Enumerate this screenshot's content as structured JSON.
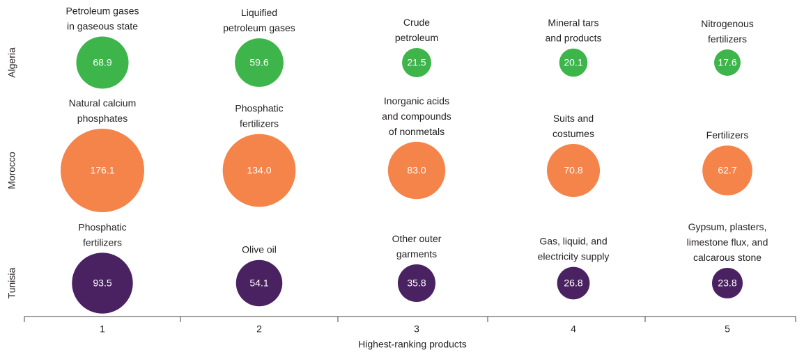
{
  "chart_data": {
    "type": "bubble",
    "xlabel": "Highest-ranking products",
    "categories": [
      "1",
      "2",
      "3",
      "4",
      "5"
    ],
    "series": [
      {
        "name": "Algeria",
        "color": "#3db54a",
        "labels": [
          "Petroleum gases\nin gaseous state",
          "Liquified\npetroleum gases",
          "Crude\npetroleum",
          "Mineral tars\nand products",
          "Nitrogenous\nfertilizers"
        ],
        "values": [
          68.9,
          59.6,
          21.5,
          20.1,
          17.6
        ],
        "value_labels": [
          "68.9",
          "59.6",
          "21.5",
          "20.1",
          "17.6"
        ]
      },
      {
        "name": "Morocco",
        "color": "#f4844a",
        "labels": [
          "Natural calcium\nphosphates",
          "Phosphatic\nfertilizers",
          "Inorganic acids\nand compounds\nof nonmetals",
          "Suits and\ncostumes",
          "Fertilizers"
        ],
        "values": [
          176.1,
          134.0,
          83.0,
          70.8,
          62.7
        ],
        "value_labels": [
          "176.1",
          "134.0",
          "83.0",
          "70.8",
          "62.7"
        ]
      },
      {
        "name": "Tunisia",
        "color": "#4a2262",
        "labels": [
          "Phosphatic\nfertilizers",
          "Olive oil",
          "Other outer\ngarments",
          "Gas, liquid, and\nelectricity supply",
          "Gypsum, plasters,\nlimestone flux, and\ncalcarous stone"
        ],
        "values": [
          93.5,
          54.1,
          35.8,
          26.8,
          23.8
        ],
        "value_labels": [
          "93.5",
          "54.1",
          "35.8",
          "26.8",
          "23.8"
        ]
      }
    ]
  }
}
